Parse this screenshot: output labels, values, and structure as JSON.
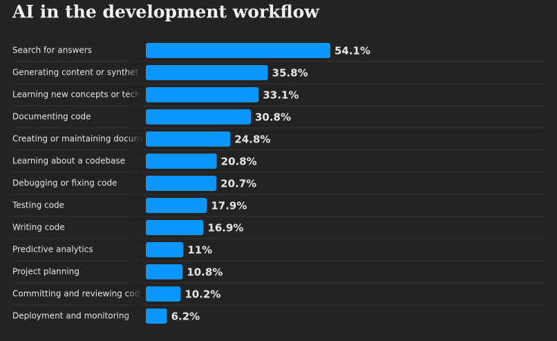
{
  "chart_data": {
    "type": "bar",
    "orientation": "horizontal",
    "title": "AI in the development workflow",
    "categories": [
      "Search for answers",
      "Generating content or synthet",
      "Learning new concepts or tech",
      "Documenting code",
      "Creating or maintaining docum",
      "Learning about a codebase",
      "Debugging or fixing code",
      "Testing code",
      "Writing code",
      "Predictive analytics",
      "Project planning",
      "Committing and reviewing cod",
      "Deployment and monitoring"
    ],
    "values": [
      54.1,
      35.8,
      33.1,
      30.8,
      24.8,
      20.8,
      20.7,
      17.9,
      16.9,
      11,
      10.8,
      10.2,
      6.2
    ],
    "value_labels": [
      "54.1%",
      "35.8%",
      "33.1%",
      "30.8%",
      "24.8%",
      "20.8%",
      "20.7%",
      "17.9%",
      "16.9%",
      "11%",
      "10.8%",
      "10.2%",
      "6.2%"
    ],
    "color": "#0a95ff"
  }
}
